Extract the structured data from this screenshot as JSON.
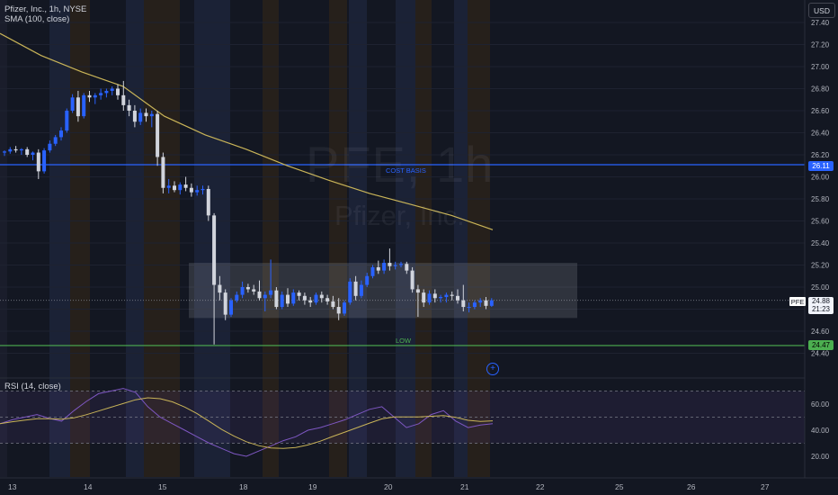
{
  "legend": {
    "symbol": "Pfizer, Inc., 1h, NYSE",
    "sma": "SMA (100, close)",
    "rsi": "RSI (14, close)"
  },
  "currency_button": "USD",
  "watermark": {
    "ticker": "PFE, 1h",
    "company": "Pfizer, Inc."
  },
  "price_axis_labels": [
    "27.40",
    "27.20",
    "27.00",
    "26.80",
    "26.60",
    "26.40",
    "26.20",
    "26.00",
    "25.80",
    "25.60",
    "25.40",
    "25.20",
    "25.00",
    "24.80",
    "24.60",
    "24.40"
  ],
  "rsi_axis_labels": [
    "60.00",
    "40.00",
    "20.00"
  ],
  "time_axis_labels": [
    "13",
    "14",
    "15",
    "18",
    "19",
    "20",
    "21",
    "22",
    "25",
    "26",
    "27"
  ],
  "lines": {
    "cost_basis": {
      "label": "COST BASIS",
      "price": "26.11",
      "color": "#2962ff"
    },
    "low": {
      "label": "LOW",
      "price": "24.47",
      "color": "#4caf50"
    }
  },
  "current": {
    "symbol": "PFE",
    "price": "24.88",
    "countdown": "21:23"
  },
  "colors": {
    "up": "#2962ff",
    "down": "#d1d4dc",
    "sma": "#c9b458",
    "rsi": "#7e57c2"
  },
  "chart_data": {
    "type": "candlestick",
    "symbol": "PFE",
    "timeframe": "1h",
    "ylim": [
      24.3,
      27.5
    ],
    "candles": [
      [
        26.22,
        26.24,
        26.19,
        26.23
      ],
      [
        26.23,
        26.27,
        26.21,
        26.25
      ],
      [
        26.25,
        26.28,
        26.22,
        26.24
      ],
      [
        26.24,
        26.26,
        26.2,
        26.25
      ],
      [
        26.25,
        26.27,
        26.18,
        26.2
      ],
      [
        26.2,
        26.23,
        26.15,
        26.22
      ],
      [
        26.22,
        26.25,
        25.98,
        26.05
      ],
      [
        26.05,
        26.26,
        26.03,
        26.24
      ],
      [
        26.24,
        26.33,
        26.22,
        26.3
      ],
      [
        26.3,
        26.38,
        26.28,
        26.36
      ],
      [
        26.36,
        26.45,
        26.33,
        26.42
      ],
      [
        26.42,
        26.62,
        26.4,
        26.6
      ],
      [
        26.6,
        26.75,
        26.58,
        26.72
      ],
      [
        26.72,
        26.78,
        26.5,
        26.55
      ],
      [
        26.55,
        26.76,
        26.53,
        26.74
      ],
      [
        26.74,
        26.78,
        26.68,
        26.72
      ],
      [
        26.72,
        26.76,
        26.66,
        26.74
      ],
      [
        26.74,
        26.8,
        26.7,
        26.76
      ],
      [
        26.76,
        26.8,
        26.72,
        26.78
      ],
      [
        26.78,
        26.82,
        26.74,
        26.8
      ],
      [
        26.8,
        26.84,
        26.7,
        26.74
      ],
      [
        26.74,
        26.87,
        26.6,
        26.65
      ],
      [
        26.65,
        26.7,
        26.55,
        26.6
      ],
      [
        26.6,
        26.65,
        26.45,
        26.5
      ],
      [
        26.5,
        26.62,
        26.47,
        26.58
      ],
      [
        26.58,
        26.62,
        26.5,
        26.55
      ],
      [
        26.55,
        26.6,
        26.45,
        26.57
      ],
      [
        26.57,
        26.6,
        26.1,
        26.18
      ],
      [
        26.18,
        26.22,
        25.85,
        25.9
      ],
      [
        25.9,
        25.98,
        25.85,
        25.92
      ],
      [
        25.92,
        25.96,
        25.86,
        25.88
      ],
      [
        25.88,
        25.95,
        25.84,
        25.93
      ],
      [
        25.93,
        26.0,
        25.87,
        25.9
      ],
      [
        25.9,
        25.94,
        25.82,
        25.86
      ],
      [
        25.86,
        25.92,
        25.83,
        25.88
      ],
      [
        25.88,
        25.92,
        25.84,
        25.89
      ],
      [
        25.89,
        25.92,
        25.6,
        25.65
      ],
      [
        25.65,
        25.67,
        24.48,
        25.02
      ],
      [
        25.02,
        25.1,
        24.88,
        24.95
      ],
      [
        24.95,
        24.98,
        24.7,
        24.75
      ],
      [
        24.75,
        24.9,
        24.73,
        24.88
      ],
      [
        24.88,
        24.96,
        24.86,
        24.93
      ],
      [
        24.93,
        25.05,
        24.9,
        25.0
      ],
      [
        25.0,
        25.03,
        24.95,
        24.98
      ],
      [
        24.98,
        25.02,
        24.93,
        24.96
      ],
      [
        24.96,
        25.06,
        24.88,
        24.9
      ],
      [
        24.9,
        24.96,
        24.78,
        24.93
      ],
      [
        24.93,
        25.25,
        24.9,
        24.97
      ],
      [
        24.97,
        25.0,
        24.8,
        24.82
      ],
      [
        24.82,
        24.96,
        24.8,
        24.93
      ],
      [
        24.93,
        24.99,
        24.82,
        24.85
      ],
      [
        24.85,
        24.98,
        24.83,
        24.95
      ],
      [
        24.95,
        24.97,
        24.88,
        24.92
      ],
      [
        24.92,
        24.95,
        24.84,
        24.88
      ],
      [
        24.88,
        24.91,
        24.82,
        24.86
      ],
      [
        24.86,
        24.95,
        24.84,
        24.93
      ],
      [
        24.93,
        24.96,
        24.86,
        24.9
      ],
      [
        24.9,
        24.93,
        24.84,
        24.87
      ],
      [
        24.87,
        24.92,
        24.8,
        24.82
      ],
      [
        24.82,
        24.9,
        24.7,
        24.76
      ],
      [
        24.76,
        24.88,
        24.74,
        24.86
      ],
      [
        24.86,
        25.08,
        24.84,
        25.05
      ],
      [
        25.05,
        25.1,
        24.88,
        24.92
      ],
      [
        24.92,
        25.06,
        24.9,
        25.02
      ],
      [
        25.02,
        25.13,
        25.0,
        25.1
      ],
      [
        25.1,
        25.2,
        25.08,
        25.18
      ],
      [
        25.18,
        25.24,
        25.12,
        25.15
      ],
      [
        25.15,
        25.25,
        25.12,
        25.22
      ],
      [
        25.22,
        25.35,
        25.15,
        25.19
      ],
      [
        25.19,
        25.23,
        25.16,
        25.2
      ],
      [
        25.2,
        25.23,
        25.18,
        25.21
      ],
      [
        25.21,
        25.23,
        25.12,
        25.15
      ],
      [
        25.15,
        25.18,
        24.95,
        24.98
      ],
      [
        24.98,
        25.02,
        24.73,
        24.95
      ],
      [
        24.95,
        24.98,
        24.82,
        24.86
      ],
      [
        24.86,
        24.97,
        24.84,
        24.94
      ],
      [
        24.94,
        24.98,
        24.86,
        24.9
      ],
      [
        24.9,
        24.93,
        24.86,
        24.91
      ],
      [
        24.91,
        24.95,
        24.86,
        24.93
      ],
      [
        24.93,
        24.96,
        24.88,
        24.92
      ],
      [
        24.92,
        24.98,
        24.85,
        24.88
      ],
      [
        24.88,
        25.02,
        24.78,
        24.82
      ],
      [
        24.82,
        24.86,
        24.77,
        24.82
      ],
      [
        24.82,
        24.88,
        24.8,
        24.86
      ],
      [
        24.86,
        24.9,
        24.82,
        24.88
      ],
      [
        24.88,
        24.91,
        24.8,
        24.83
      ],
      [
        24.83,
        24.9,
        24.82,
        24.88
      ]
    ],
    "sma": {
      "name": "SMA (100, close)",
      "values": [
        27.3,
        27.1,
        26.95,
        26.82,
        26.55,
        26.38,
        26.25,
        26.1,
        25.97,
        25.85,
        25.75,
        25.65,
        25.52
      ]
    },
    "rsi": {
      "name": "RSI (14, close)",
      "ylim": [
        10,
        80
      ],
      "bands": [
        70,
        50,
        30
      ],
      "values": [
        45,
        48,
        50,
        52,
        49,
        47,
        55,
        62,
        68,
        70,
        72,
        69,
        58,
        50,
        45,
        40,
        35,
        30,
        26,
        22,
        20,
        24,
        28,
        32,
        35,
        40,
        42,
        45,
        48,
        52,
        56,
        58,
        50,
        42,
        45,
        52,
        55,
        47,
        42,
        44,
        45
      ]
    }
  }
}
